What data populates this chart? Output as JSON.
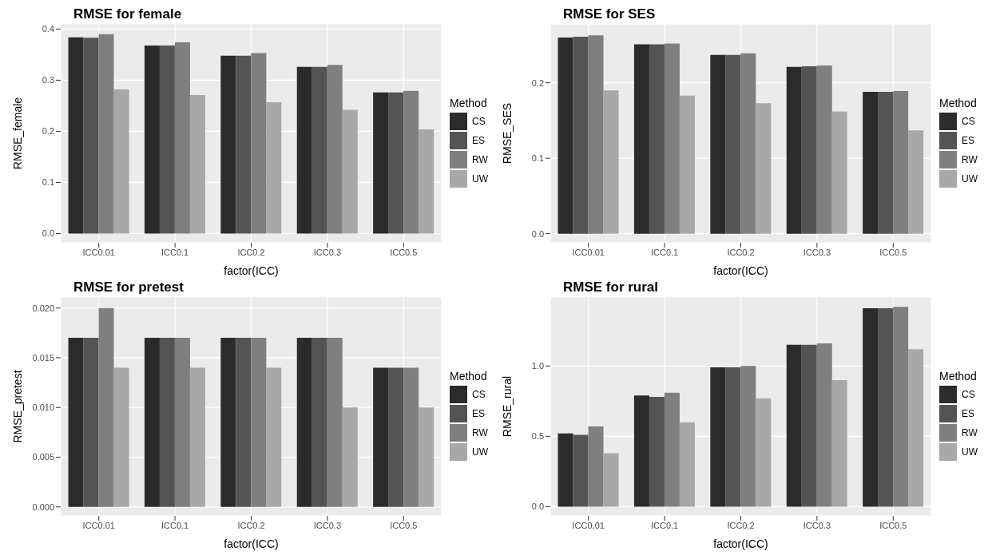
{
  "chart_data": [
    {
      "type": "bar",
      "title": "RMSE for female",
      "xlabel": "factor(ICC)",
      "ylabel": "RMSE_female",
      "legend_title": "Method",
      "legend": "right",
      "grid": true,
      "categories": [
        "ICC0.01",
        "ICC0.1",
        "ICC0.2",
        "ICC0.3",
        "ICC0.5"
      ],
      "ylim": [
        -0.018,
        0.41
      ],
      "yticks": [
        {
          "value": 0,
          "label": "0.0"
        },
        {
          "value": 0.1,
          "label": "0.1"
        },
        {
          "value": 0.2,
          "label": "0.2"
        },
        {
          "value": 0.3,
          "label": "0.3"
        },
        {
          "value": 0.4,
          "label": "0.4"
        }
      ],
      "series": [
        {
          "name": "CS",
          "color": "#2b2b2b",
          "values": [
            0.384,
            0.368,
            0.348,
            0.326,
            0.276
          ]
        },
        {
          "name": "ES",
          "color": "#545454",
          "values": [
            0.383,
            0.368,
            0.348,
            0.326,
            0.276
          ]
        },
        {
          "name": "RW",
          "color": "#7f7f7f",
          "values": [
            0.39,
            0.374,
            0.353,
            0.33,
            0.279
          ]
        },
        {
          "name": "UW",
          "color": "#a8a8a8",
          "values": [
            0.282,
            0.271,
            0.257,
            0.242,
            0.204
          ]
        }
      ]
    },
    {
      "type": "bar",
      "title": "RMSE for SES",
      "xlabel": "factor(ICC)",
      "ylabel": "RMSE_SES",
      "legend_title": "Method",
      "legend": "right",
      "grid": true,
      "categories": [
        "ICC0.01",
        "ICC0.1",
        "ICC0.2",
        "ICC0.3",
        "ICC0.5"
      ],
      "ylim": [
        -0.012,
        0.278
      ],
      "yticks": [
        {
          "value": 0,
          "label": "0.0"
        },
        {
          "value": 0.1,
          "label": "0.1"
        },
        {
          "value": 0.2,
          "label": "0.2"
        }
      ],
      "series": [
        {
          "name": "CS",
          "color": "#2b2b2b",
          "values": [
            0.26,
            0.251,
            0.237,
            0.221,
            0.188
          ]
        },
        {
          "name": "ES",
          "color": "#545454",
          "values": [
            0.261,
            0.251,
            0.237,
            0.222,
            0.188
          ]
        },
        {
          "name": "RW",
          "color": "#7f7f7f",
          "values": [
            0.263,
            0.252,
            0.239,
            0.223,
            0.189
          ]
        },
        {
          "name": "UW",
          "color": "#a8a8a8",
          "values": [
            0.19,
            0.183,
            0.173,
            0.162,
            0.137
          ]
        }
      ]
    },
    {
      "type": "bar",
      "title": "RMSE for pretest",
      "xlabel": "factor(ICC)",
      "ylabel": "RMSE_pretest",
      "legend_title": "Method",
      "legend": "right",
      "grid": true,
      "categories": [
        "ICC0.01",
        "ICC0.1",
        "ICC0.2",
        "ICC0.3",
        "ICC0.5"
      ],
      "ylim": [
        -0.0009,
        0.0211
      ],
      "yticks": [
        {
          "value": 0,
          "label": "0.000"
        },
        {
          "value": 0.005,
          "label": "0.005"
        },
        {
          "value": 0.01,
          "label": "0.010"
        },
        {
          "value": 0.015,
          "label": "0.015"
        },
        {
          "value": 0.02,
          "label": "0.020"
        }
      ],
      "series": [
        {
          "name": "CS",
          "color": "#2b2b2b",
          "values": [
            0.017,
            0.017,
            0.017,
            0.017,
            0.014
          ]
        },
        {
          "name": "ES",
          "color": "#545454",
          "values": [
            0.017,
            0.017,
            0.017,
            0.017,
            0.014
          ]
        },
        {
          "name": "RW",
          "color": "#7f7f7f",
          "values": [
            0.02,
            0.017,
            0.017,
            0.017,
            0.014
          ]
        },
        {
          "name": "UW",
          "color": "#a8a8a8",
          "values": [
            0.014,
            0.014,
            0.014,
            0.01,
            0.01
          ]
        }
      ]
    },
    {
      "type": "bar",
      "title": "RMSE for rural",
      "xlabel": "factor(ICC)",
      "ylabel": "RMSE_rural",
      "legend_title": "Method",
      "legend": "right",
      "grid": true,
      "categories": [
        "ICC0.01",
        "ICC0.1",
        "ICC0.2",
        "ICC0.3",
        "ICC0.5"
      ],
      "ylim": [
        -0.066,
        1.49
      ],
      "yticks": [
        {
          "value": 0,
          "label": "0.0"
        },
        {
          "value": 0.5,
          "label": "0.5"
        },
        {
          "value": 1,
          "label": "1.0"
        }
      ],
      "series": [
        {
          "name": "CS",
          "color": "#2b2b2b",
          "values": [
            0.52,
            0.79,
            0.99,
            1.15,
            1.41
          ]
        },
        {
          "name": "ES",
          "color": "#545454",
          "values": [
            0.51,
            0.78,
            0.99,
            1.15,
            1.41
          ]
        },
        {
          "name": "RW",
          "color": "#7f7f7f",
          "values": [
            0.57,
            0.81,
            1.0,
            1.16,
            1.42
          ]
        },
        {
          "name": "UW",
          "color": "#a8a8a8",
          "values": [
            0.38,
            0.6,
            0.77,
            0.9,
            1.12
          ]
        }
      ]
    }
  ]
}
